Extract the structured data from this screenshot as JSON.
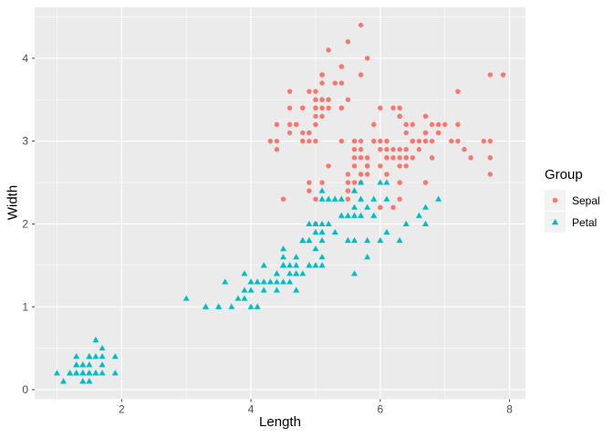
{
  "chart_data": {
    "type": "scatter",
    "title": "",
    "xlabel": "Length",
    "ylabel": "Width",
    "axes": {
      "xlim": [
        0.655,
        8.245
      ],
      "ylim": [
        -0.115,
        4.615
      ],
      "x_ticks": [
        2,
        4,
        6,
        8
      ],
      "x_tick_labels": [
        "2",
        "4",
        "6",
        "8"
      ],
      "y_ticks": [
        0,
        1,
        2,
        3,
        4
      ],
      "y_tick_labels": [
        "0",
        "1",
        "2",
        "3",
        "4"
      ],
      "x_minor": [
        1,
        3,
        5,
        7
      ],
      "y_minor": [
        0.5,
        1.5,
        2.5,
        3.5,
        4.5
      ],
      "grid": true
    },
    "style": {
      "panel_bg": "#EBEBEB",
      "grid_color": "#FFFFFF",
      "tick_color": "#333333",
      "tick_label_color": "#4D4D4D",
      "point_radius": 2.7
    },
    "legend": {
      "title": "Group",
      "position": "right",
      "key_bg": "#F2F2F2",
      "entries": [
        {
          "label": "Sepal",
          "shape": "circle",
          "color": "#F8766D"
        },
        {
          "label": "Petal",
          "shape": "triangle",
          "color": "#00BFC4"
        }
      ]
    },
    "series": [
      {
        "name": "Sepal",
        "shape": "circle",
        "color": "#F8766D",
        "points": [
          [
            5.1,
            3.5
          ],
          [
            4.9,
            3.0
          ],
          [
            4.7,
            3.2
          ],
          [
            4.6,
            3.1
          ],
          [
            5.0,
            3.6
          ],
          [
            5.4,
            3.9
          ],
          [
            4.6,
            3.4
          ],
          [
            5.0,
            3.4
          ],
          [
            4.4,
            2.9
          ],
          [
            4.9,
            3.1
          ],
          [
            5.4,
            3.7
          ],
          [
            4.8,
            3.4
          ],
          [
            4.8,
            3.0
          ],
          [
            4.3,
            3.0
          ],
          [
            5.8,
            4.0
          ],
          [
            5.7,
            4.4
          ],
          [
            5.4,
            3.9
          ],
          [
            5.1,
            3.5
          ],
          [
            5.7,
            3.8
          ],
          [
            5.1,
            3.8
          ],
          [
            5.4,
            3.4
          ],
          [
            5.1,
            3.7
          ],
          [
            4.6,
            3.6
          ],
          [
            5.1,
            3.3
          ],
          [
            4.8,
            3.4
          ],
          [
            5.0,
            3.0
          ],
          [
            5.0,
            3.4
          ],
          [
            5.2,
            3.5
          ],
          [
            5.2,
            3.4
          ],
          [
            4.7,
            3.2
          ],
          [
            4.8,
            3.1
          ],
          [
            5.4,
            3.4
          ],
          [
            5.2,
            4.1
          ],
          [
            5.5,
            4.2
          ],
          [
            4.9,
            3.1
          ],
          [
            5.0,
            3.2
          ],
          [
            5.5,
            3.5
          ],
          [
            4.9,
            3.6
          ],
          [
            4.4,
            3.0
          ],
          [
            5.1,
            3.4
          ],
          [
            5.0,
            3.5
          ],
          [
            4.5,
            2.3
          ],
          [
            4.4,
            3.2
          ],
          [
            5.0,
            3.5
          ],
          [
            5.1,
            3.8
          ],
          [
            4.8,
            3.0
          ],
          [
            5.1,
            3.8
          ],
          [
            4.6,
            3.2
          ],
          [
            5.3,
            3.7
          ],
          [
            5.0,
            3.3
          ],
          [
            7.0,
            3.2
          ],
          [
            6.4,
            3.2
          ],
          [
            6.9,
            3.1
          ],
          [
            5.5,
            2.3
          ],
          [
            6.5,
            2.8
          ],
          [
            5.7,
            2.8
          ],
          [
            6.3,
            3.3
          ],
          [
            4.9,
            2.4
          ],
          [
            6.6,
            2.9
          ],
          [
            5.2,
            2.7
          ],
          [
            5.0,
            2.0
          ],
          [
            5.9,
            3.0
          ],
          [
            6.0,
            2.2
          ],
          [
            6.1,
            2.9
          ],
          [
            5.6,
            2.9
          ],
          [
            6.7,
            3.1
          ],
          [
            5.6,
            3.0
          ],
          [
            5.8,
            2.7
          ],
          [
            6.2,
            2.2
          ],
          [
            5.6,
            2.5
          ],
          [
            5.9,
            3.2
          ],
          [
            6.1,
            2.8
          ],
          [
            6.3,
            2.5
          ],
          [
            6.1,
            2.8
          ],
          [
            6.4,
            2.9
          ],
          [
            6.6,
            3.0
          ],
          [
            6.8,
            2.8
          ],
          [
            6.7,
            3.0
          ],
          [
            6.0,
            2.9
          ],
          [
            5.7,
            2.6
          ],
          [
            5.5,
            2.4
          ],
          [
            5.5,
            2.4
          ],
          [
            5.8,
            2.7
          ],
          [
            6.0,
            2.7
          ],
          [
            5.4,
            3.0
          ],
          [
            6.0,
            3.4
          ],
          [
            6.7,
            3.1
          ],
          [
            6.3,
            2.3
          ],
          [
            5.6,
            3.0
          ],
          [
            5.5,
            2.5
          ],
          [
            5.5,
            2.6
          ],
          [
            6.1,
            3.0
          ],
          [
            5.8,
            2.6
          ],
          [
            5.0,
            2.3
          ],
          [
            5.6,
            2.7
          ],
          [
            5.7,
            3.0
          ],
          [
            5.7,
            2.9
          ],
          [
            6.2,
            2.9
          ],
          [
            5.1,
            2.5
          ],
          [
            5.7,
            2.8
          ],
          [
            6.3,
            3.3
          ],
          [
            5.8,
            2.7
          ],
          [
            7.1,
            3.0
          ],
          [
            6.3,
            2.9
          ],
          [
            6.5,
            3.0
          ],
          [
            7.6,
            3.0
          ],
          [
            4.9,
            2.5
          ],
          [
            7.3,
            2.9
          ],
          [
            6.7,
            2.5
          ],
          [
            7.2,
            3.6
          ],
          [
            6.5,
            3.2
          ],
          [
            6.4,
            2.7
          ],
          [
            6.8,
            3.0
          ],
          [
            5.7,
            2.5
          ],
          [
            5.8,
            2.8
          ],
          [
            6.4,
            3.2
          ],
          [
            6.5,
            3.0
          ],
          [
            7.7,
            3.8
          ],
          [
            7.7,
            2.6
          ],
          [
            6.0,
            2.2
          ],
          [
            6.9,
            3.2
          ],
          [
            5.6,
            2.8
          ],
          [
            7.7,
            2.8
          ],
          [
            6.3,
            2.7
          ],
          [
            6.7,
            3.3
          ],
          [
            7.2,
            3.2
          ],
          [
            6.2,
            2.8
          ],
          [
            6.1,
            3.0
          ],
          [
            6.4,
            2.8
          ],
          [
            7.2,
            3.0
          ],
          [
            7.4,
            2.8
          ],
          [
            7.9,
            3.8
          ],
          [
            6.4,
            2.8
          ],
          [
            6.3,
            2.8
          ],
          [
            6.1,
            2.6
          ],
          [
            7.7,
            3.0
          ],
          [
            6.3,
            3.4
          ],
          [
            6.4,
            3.1
          ],
          [
            6.0,
            3.0
          ],
          [
            6.9,
            3.1
          ],
          [
            6.7,
            3.1
          ],
          [
            6.9,
            3.1
          ],
          [
            5.8,
            2.7
          ],
          [
            6.8,
            3.2
          ],
          [
            6.7,
            3.3
          ],
          [
            6.7,
            3.0
          ],
          [
            6.3,
            2.5
          ],
          [
            6.5,
            3.0
          ],
          [
            6.2,
            3.4
          ],
          [
            5.9,
            3.0
          ]
        ]
      },
      {
        "name": "Petal",
        "shape": "triangle",
        "color": "#00BFC4",
        "points": [
          [
            1.4,
            0.2
          ],
          [
            1.4,
            0.2
          ],
          [
            1.3,
            0.2
          ],
          [
            1.5,
            0.2
          ],
          [
            1.4,
            0.2
          ],
          [
            1.7,
            0.4
          ],
          [
            1.4,
            0.3
          ],
          [
            1.5,
            0.2
          ],
          [
            1.4,
            0.2
          ],
          [
            1.5,
            0.1
          ],
          [
            1.5,
            0.2
          ],
          [
            1.6,
            0.2
          ],
          [
            1.4,
            0.1
          ],
          [
            1.1,
            0.1
          ],
          [
            1.2,
            0.2
          ],
          [
            1.5,
            0.4
          ],
          [
            1.3,
            0.4
          ],
          [
            1.4,
            0.3
          ],
          [
            1.7,
            0.3
          ],
          [
            1.5,
            0.3
          ],
          [
            1.7,
            0.2
          ],
          [
            1.5,
            0.4
          ],
          [
            1.0,
            0.2
          ],
          [
            1.7,
            0.5
          ],
          [
            1.9,
            0.2
          ],
          [
            1.6,
            0.2
          ],
          [
            1.6,
            0.4
          ],
          [
            1.5,
            0.2
          ],
          [
            1.4,
            0.2
          ],
          [
            1.6,
            0.2
          ],
          [
            1.6,
            0.2
          ],
          [
            1.5,
            0.4
          ],
          [
            1.5,
            0.1
          ],
          [
            1.4,
            0.2
          ],
          [
            1.5,
            0.2
          ],
          [
            1.2,
            0.2
          ],
          [
            1.3,
            0.2
          ],
          [
            1.4,
            0.1
          ],
          [
            1.3,
            0.2
          ],
          [
            1.5,
            0.2
          ],
          [
            1.3,
            0.3
          ],
          [
            1.3,
            0.3
          ],
          [
            1.3,
            0.2
          ],
          [
            1.6,
            0.6
          ],
          [
            1.9,
            0.4
          ],
          [
            1.4,
            0.3
          ],
          [
            1.6,
            0.2
          ],
          [
            1.4,
            0.2
          ],
          [
            1.5,
            0.2
          ],
          [
            1.4,
            0.2
          ],
          [
            4.7,
            1.4
          ],
          [
            4.5,
            1.5
          ],
          [
            4.9,
            1.5
          ],
          [
            4.0,
            1.3
          ],
          [
            4.6,
            1.5
          ],
          [
            4.5,
            1.3
          ],
          [
            4.7,
            1.6
          ],
          [
            3.3,
            1.0
          ],
          [
            4.6,
            1.3
          ],
          [
            3.9,
            1.4
          ],
          [
            3.5,
            1.0
          ],
          [
            4.2,
            1.5
          ],
          [
            4.0,
            1.0
          ],
          [
            4.7,
            1.4
          ],
          [
            3.6,
            1.3
          ],
          [
            4.4,
            1.4
          ],
          [
            4.5,
            1.5
          ],
          [
            4.1,
            1.0
          ],
          [
            4.5,
            1.5
          ],
          [
            3.9,
            1.1
          ],
          [
            4.8,
            1.8
          ],
          [
            4.0,
            1.3
          ],
          [
            4.9,
            1.5
          ],
          [
            4.7,
            1.2
          ],
          [
            4.3,
            1.3
          ],
          [
            4.4,
            1.4
          ],
          [
            4.8,
            1.4
          ],
          [
            5.0,
            1.7
          ],
          [
            4.5,
            1.5
          ],
          [
            3.5,
            1.0
          ],
          [
            3.8,
            1.1
          ],
          [
            3.7,
            1.0
          ],
          [
            3.9,
            1.2
          ],
          [
            5.1,
            1.6
          ],
          [
            4.5,
            1.5
          ],
          [
            4.5,
            1.6
          ],
          [
            4.7,
            1.5
          ],
          [
            4.4,
            1.3
          ],
          [
            4.1,
            1.3
          ],
          [
            4.0,
            1.3
          ],
          [
            4.4,
            1.2
          ],
          [
            4.6,
            1.4
          ],
          [
            4.0,
            1.2
          ],
          [
            3.3,
            1.0
          ],
          [
            4.2,
            1.3
          ],
          [
            4.2,
            1.2
          ],
          [
            4.2,
            1.3
          ],
          [
            4.3,
            1.3
          ],
          [
            3.0,
            1.1
          ],
          [
            4.1,
            1.3
          ],
          [
            6.0,
            2.5
          ],
          [
            5.1,
            1.9
          ],
          [
            5.9,
            2.1
          ],
          [
            5.6,
            1.8
          ],
          [
            5.8,
            2.2
          ],
          [
            6.6,
            2.1
          ],
          [
            4.5,
            1.7
          ],
          [
            6.3,
            1.8
          ],
          [
            5.8,
            1.8
          ],
          [
            6.1,
            2.5
          ],
          [
            5.1,
            2.0
          ],
          [
            5.3,
            1.9
          ],
          [
            5.5,
            2.1
          ],
          [
            5.0,
            2.0
          ],
          [
            5.1,
            2.4
          ],
          [
            5.3,
            2.3
          ],
          [
            5.5,
            1.8
          ],
          [
            6.7,
            2.2
          ],
          [
            6.9,
            2.3
          ],
          [
            5.0,
            1.5
          ],
          [
            5.7,
            2.3
          ],
          [
            4.9,
            2.0
          ],
          [
            6.7,
            2.0
          ],
          [
            4.9,
            1.8
          ],
          [
            5.7,
            2.1
          ],
          [
            6.0,
            1.8
          ],
          [
            4.8,
            1.8
          ],
          [
            4.9,
            1.8
          ],
          [
            5.6,
            2.1
          ],
          [
            5.8,
            1.6
          ],
          [
            6.1,
            1.9
          ],
          [
            6.4,
            2.0
          ],
          [
            5.6,
            2.2
          ],
          [
            5.1,
            1.5
          ],
          [
            5.6,
            1.4
          ],
          [
            6.1,
            2.3
          ],
          [
            5.6,
            2.4
          ],
          [
            5.5,
            1.8
          ],
          [
            4.8,
            1.8
          ],
          [
            5.4,
            2.1
          ],
          [
            5.6,
            2.4
          ],
          [
            5.1,
            2.3
          ],
          [
            5.1,
            1.9
          ],
          [
            5.9,
            2.3
          ],
          [
            5.7,
            2.5
          ],
          [
            5.2,
            2.3
          ],
          [
            5.0,
            1.9
          ],
          [
            5.2,
            2.0
          ],
          [
            5.4,
            2.3
          ],
          [
            5.1,
            1.8
          ]
        ]
      }
    ]
  }
}
